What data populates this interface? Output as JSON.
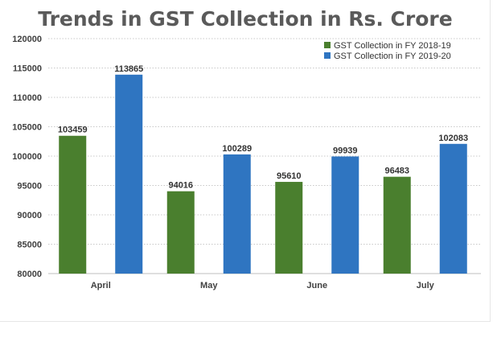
{
  "chart_data": {
    "type": "bar",
    "title": "Trends in GST Collection in Rs. Crore",
    "xlabel": "",
    "ylabel": "",
    "categories": [
      "April",
      "May",
      "June",
      "July"
    ],
    "series": [
      {
        "name": "GST Collection in FY 2018-19",
        "color": "#4a7f2e",
        "values": [
          103459,
          94016,
          95610,
          96483
        ]
      },
      {
        "name": "GST Collection in FY 2019-20",
        "color": "#2f75c1",
        "values": [
          113865,
          100289,
          99939,
          102083
        ]
      }
    ],
    "ylim": [
      80000,
      120000
    ],
    "yticks": [
      80000,
      85000,
      90000,
      95000,
      100000,
      105000,
      110000,
      115000,
      120000
    ],
    "grid": true,
    "legend_position": "top-right"
  }
}
